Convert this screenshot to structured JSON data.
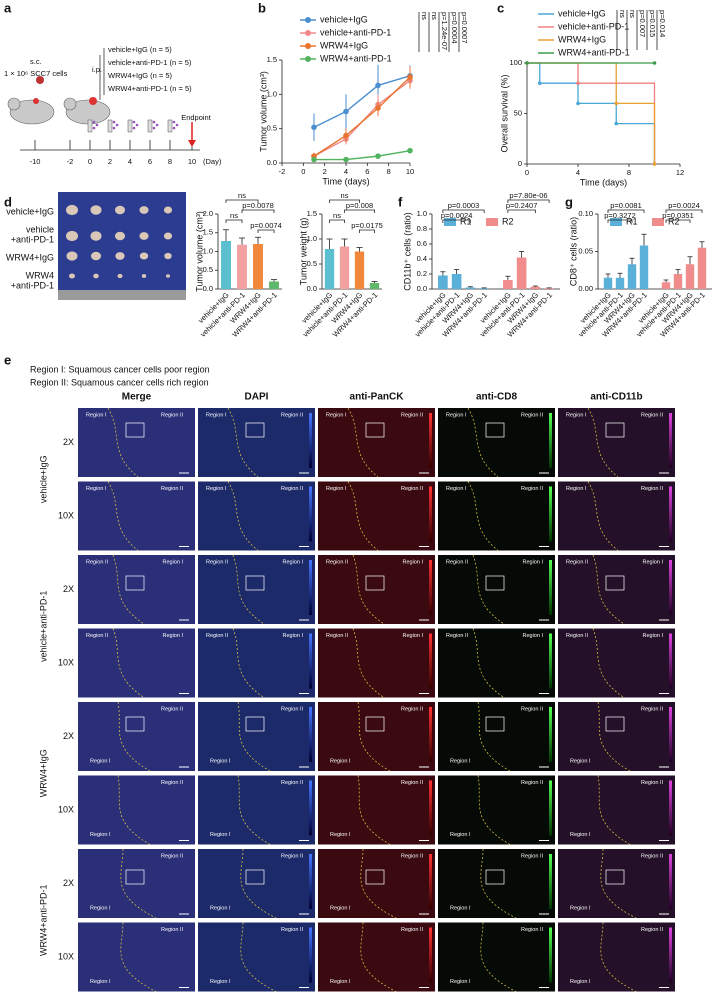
{
  "panel_a": {
    "label": "a",
    "injection_route": "s.c.",
    "cells": "1 × 10⁶ SCC7 cells",
    "treatment_route": "i.p.",
    "groups": [
      "vehicle+IgG (n = 5)",
      "vehicle+anti-PD-1 (n = 5)",
      "WRW4+IgG (n = 5)",
      "WRW4+anti-PD-1 (n = 5)"
    ],
    "timeline": [
      -10,
      -2,
      0,
      2,
      4,
      6,
      8,
      10
    ],
    "timeline_unit": "(Day)",
    "endpoint": "Endpoint"
  },
  "panel_d_photo": {
    "rows": [
      [
        "vehicle+IgG"
      ],
      [
        "vehicle",
        "+anti-PD-1"
      ],
      [
        "WRW4+IgG"
      ],
      [
        "WRW4",
        "+anti-PD-1"
      ]
    ]
  },
  "panel_e": {
    "label": "e",
    "notes": [
      "Region I: Squamous cancer cells poor region",
      "Region II: Squamous cancer cells rich region"
    ],
    "channels": [
      "Merge",
      "DAPI",
      "anti-PanCK",
      "anti-CD8",
      "anti-CD11b"
    ],
    "groups": [
      {
        "name": "vehicle+IgG",
        "rows": [
          {
            "magnification": "2X",
            "regions": [
              "Region I",
              "Region II"
            ]
          },
          {
            "magnification": "10X",
            "regions": [
              "Region I",
              "Region II"
            ]
          }
        ]
      },
      {
        "name": "vehicle+anti-PD-1",
        "rows": [
          {
            "magnification": "2X",
            "regions": [
              "Region II",
              "Region I"
            ]
          },
          {
            "magnification": "10X",
            "regions": [
              "Region II",
              "Region I"
            ]
          }
        ]
      },
      {
        "name": "WRW4+IgG",
        "rows": [
          {
            "magnification": "2X",
            "regions": [
              "Region II",
              "Region I"
            ]
          },
          {
            "magnification": "10X",
            "regions": [
              "Region II",
              "Region I"
            ]
          }
        ]
      },
      {
        "name": "WRW4+anti-PD-1",
        "rows": [
          {
            "magnification": "2X",
            "regions": [
              "Region II",
              "Region I"
            ]
          },
          {
            "magnification": "10X",
            "regions": [
              "Region II",
              "Region I"
            ]
          }
        ]
      }
    ]
  },
  "chart_data": [
    {
      "panel": "b",
      "type": "line",
      "ylabel": "Tumor volume (cm³)",
      "xlabel": "Time (days)",
      "x": [
        1,
        4,
        7,
        10
      ],
      "xlim": [
        -2,
        10
      ],
      "xticks": [
        -2,
        0,
        2,
        4,
        6,
        8,
        10
      ],
      "ylim": [
        0,
        1.5
      ],
      "yticks": [
        {
          "value": 0,
          "label": "0.0"
        },
        0.5,
        {
          "value": 1,
          "label": "1.0"
        },
        1.5
      ],
      "series": [
        {
          "name": "vehicle+IgG",
          "color": "#4a8fd0",
          "values": [
            0.52,
            0.75,
            1.13,
            1.27
          ],
          "errors": [
            0.2,
            0.25,
            0.3,
            0.15
          ]
        },
        {
          "name": "vehicle+anti-PD-1",
          "color": "#f08a8a",
          "values": [
            0.1,
            0.35,
            0.85,
            1.2
          ],
          "errors": [
            0.05,
            0.08,
            0.15,
            0.12
          ]
        },
        {
          "name": "WRW4+IgG",
          "color": "#e8742e",
          "values": [
            0.1,
            0.4,
            0.8,
            1.25
          ],
          "errors": [
            0.05,
            0.1,
            0.12,
            0.15
          ]
        },
        {
          "name": "WRW4+anti-PD-1",
          "color": "#52b35e",
          "values": [
            0.05,
            0.05,
            0.1,
            0.18
          ],
          "errors": [
            0.02,
            0.03,
            0.03,
            0.02
          ]
        }
      ],
      "annotations": [
        "ns",
        "ns",
        "p=1.24e-07",
        "p=0.0004",
        "p=0.0007"
      ]
    },
    {
      "panel": "c",
      "type": "step",
      "ylabel": "Overall survival (%)",
      "xlabel": "Time (days)",
      "xlim": [
        0,
        12
      ],
      "xticks": [
        0,
        4,
        8,
        12
      ],
      "ylim": [
        0,
        100
      ],
      "yticks": [
        0,
        50,
        100
      ],
      "series": [
        {
          "name": "vehicle+IgG",
          "color": "#4aa8d8",
          "x": [
            0,
            1,
            4,
            7,
            10
          ],
          "values": [
            100,
            80,
            60,
            40,
            0
          ]
        },
        {
          "name": "vehicle+anti-PD-1",
          "color": "#f08080",
          "x": [
            0,
            4,
            10
          ],
          "values": [
            100,
            80,
            0
          ]
        },
        {
          "name": "WRW4+IgG",
          "color": "#e8a030",
          "x": [
            0,
            7,
            10
          ],
          "values": [
            100,
            60,
            0
          ]
        },
        {
          "name": "WRW4+anti-PD-1",
          "color": "#3a9a4a",
          "x": [
            0,
            10
          ],
          "values": [
            100,
            100
          ]
        }
      ],
      "annotations": [
        "ns",
        "ns",
        "p=0.007",
        "p=0.015",
        "p=0.014"
      ]
    },
    {
      "panel": "d",
      "type": "bar",
      "ylabel": "Tumor volume (cm³)",
      "categories": [
        "vehicle+IgG",
        "vehicle+anti-PD-1",
        "WRW4+IgG",
        "WRW4+anti-PD-1"
      ],
      "values": [
        1.28,
        1.18,
        1.2,
        0.2
      ],
      "errors": [
        0.3,
        0.18,
        0.18,
        0.05
      ],
      "colors": [
        "#5bbfcf",
        "#f2a0a0",
        "#f0873a",
        "#5db86a"
      ],
      "ylim": [
        0,
        2
      ],
      "yticks": [
        {
          "value": 0,
          "label": "0.0"
        },
        0.5,
        {
          "value": 1,
          "label": "1.0"
        },
        1.5,
        {
          "value": 2,
          "label": "2.0"
        }
      ],
      "annotations": [
        "ns",
        "ns",
        "p=0.0078",
        "p=0.0074"
      ]
    },
    {
      "type": "bar",
      "ylabel": "Tumor weight (g)",
      "categories": [
        "vehicle+IgG",
        "vehicle+anti-PD-1",
        "WRW4+IgG",
        "WRW4+anti-PD-1"
      ],
      "values": [
        0.8,
        0.85,
        0.75,
        0.12
      ],
      "errors": [
        0.2,
        0.15,
        0.08,
        0.03
      ],
      "colors": [
        "#5bbfcf",
        "#f2a0a0",
        "#f0873a",
        "#5db86a"
      ],
      "ylim": [
        0,
        1.5
      ],
      "yticks": [
        {
          "value": 0,
          "label": "0.0"
        },
        0.5,
        {
          "value": 1,
          "label": "1.0"
        },
        1.5
      ],
      "annotations": [
        "ns",
        "ns",
        "p=0.008",
        "p=0.0175"
      ]
    },
    {
      "panel": "f",
      "type": "grouped_bar",
      "ylabel": "CD11b⁺ cells (ratio)",
      "categories": [
        "vehicle+IgG",
        "vehicle+anti-PD-1",
        "WRW4+IgG",
        "WRW4+anti-PD-1"
      ],
      "series": [
        {
          "name": "R1",
          "color": "#5ab0d8",
          "values": [
            0.18,
            0.2,
            0.02,
            0.01
          ],
          "errors": [
            0.05,
            0.06,
            0.01,
            0.005
          ]
        },
        {
          "name": "R2",
          "color": "#f08c8c",
          "values": [
            0.12,
            0.42,
            0.03,
            0.01
          ],
          "errors": [
            0.05,
            0.08,
            0.01,
            0.005
          ]
        }
      ],
      "ylim": [
        0,
        1
      ],
      "yticks": [
        {
          "value": 0,
          "label": "0.0"
        },
        0.2,
        0.4,
        0.6,
        0.8,
        {
          "value": 1,
          "label": "1.0"
        }
      ],
      "legend": "upper left",
      "annotations": [
        "p=0.0024",
        "p=0.0003",
        "p=0.2407",
        "p=7.80e-06"
      ]
    },
    {
      "panel": "g",
      "type": "grouped_bar",
      "ylabel": "CD8⁺ cells (ratio)",
      "categories": [
        "vehicle+IgG",
        "vehicle+anti-PD-1",
        "WRW4+IgG",
        "WRW4+anti-PD-1"
      ],
      "series": [
        {
          "name": "R1",
          "color": "#5ab0d8",
          "values": [
            0.015,
            0.015,
            0.033,
            0.058
          ],
          "errors": [
            0.005,
            0.006,
            0.008,
            0.015
          ]
        },
        {
          "name": "R2",
          "color": "#f08c8c",
          "values": [
            0.009,
            0.02,
            0.033,
            0.055
          ],
          "errors": [
            0.003,
            0.006,
            0.01,
            0.008
          ]
        }
      ],
      "ylim": [
        0,
        0.1
      ],
      "yticks": [
        {
          "value": 0,
          "label": "0.00"
        },
        0.05,
        {
          "value": 0.1,
          "label": "0.10"
        }
      ],
      "legend": "upper left",
      "annotations": [
        "p=0.3272",
        "p=0.0081",
        "p=0.0351",
        "p=0.0024"
      ]
    }
  ]
}
